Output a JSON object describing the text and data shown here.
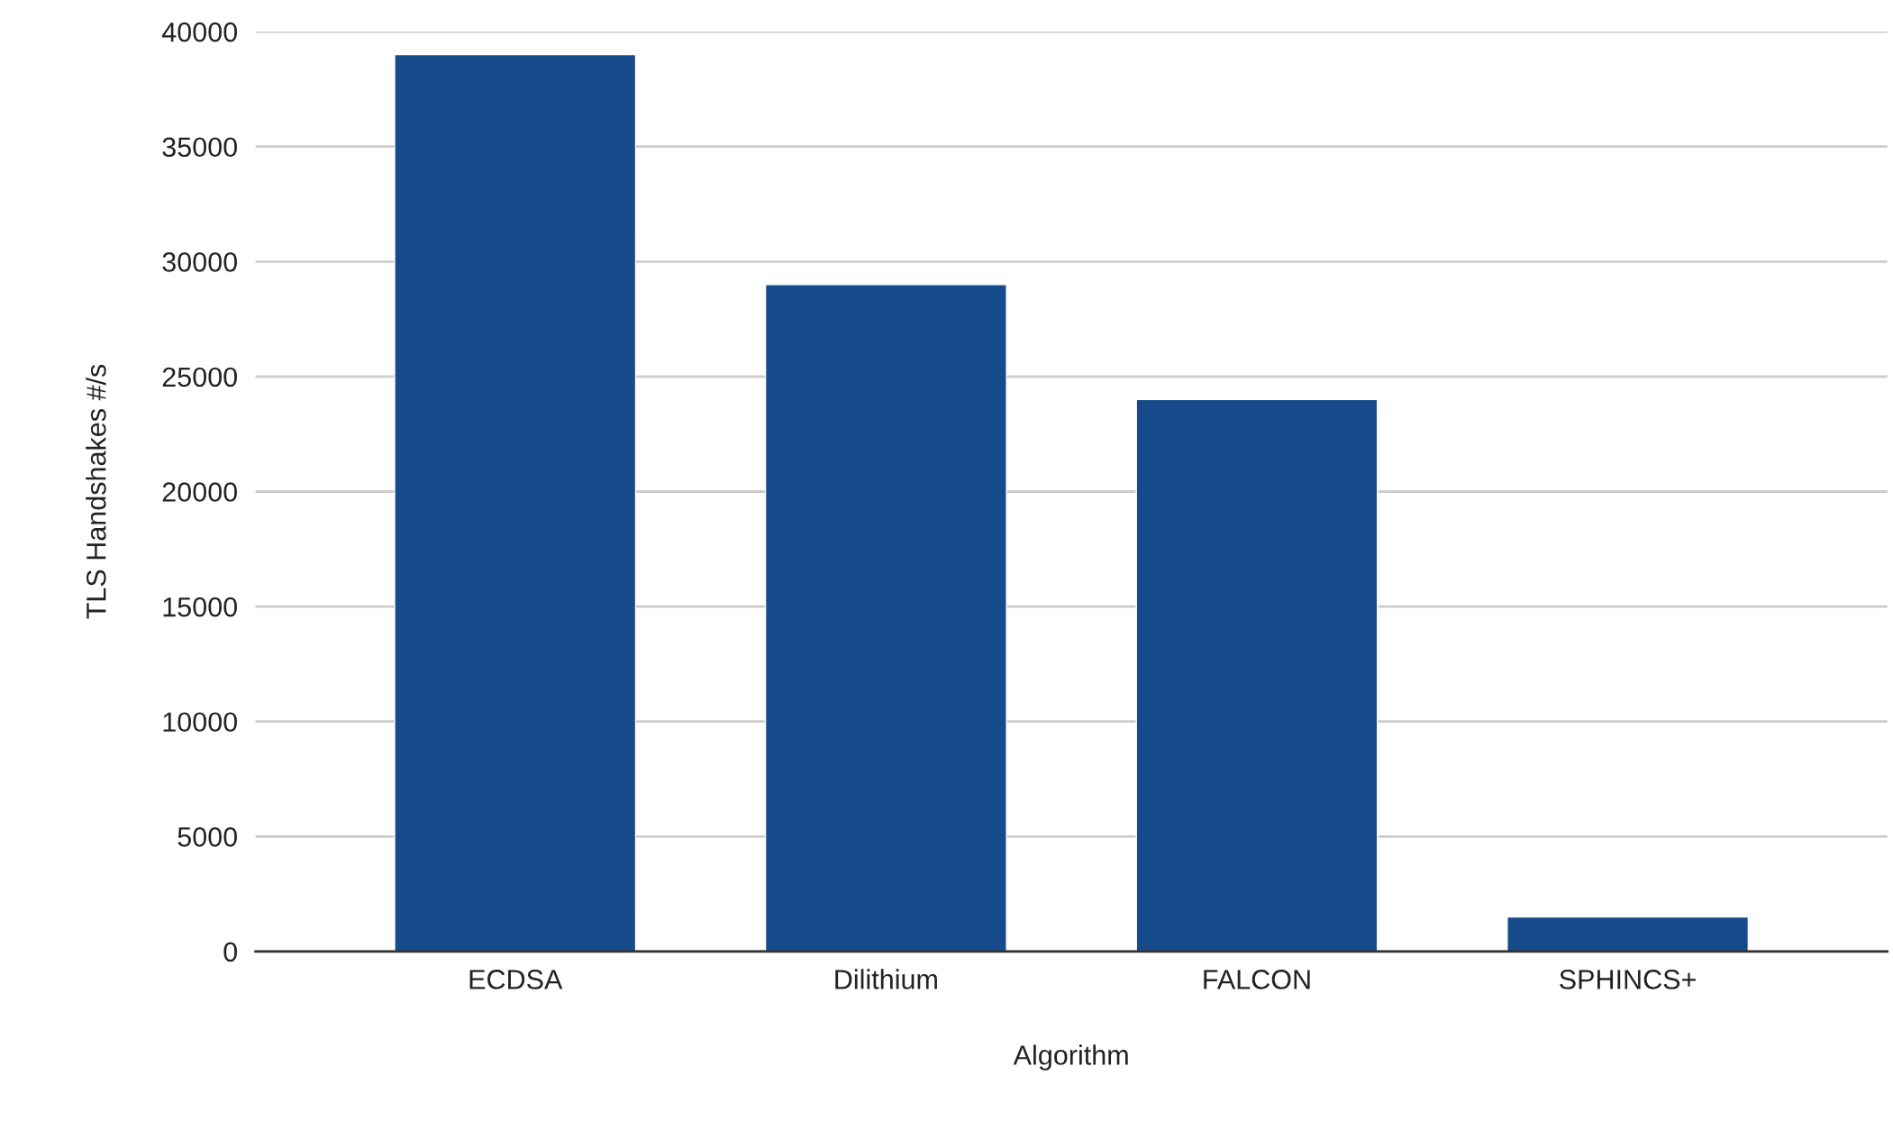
{
  "chart_data": {
    "type": "bar",
    "xlabel": "Algorithm",
    "ylabel": "TLS Handshakes #/s",
    "categories": [
      "ECDSA",
      "Dilithium",
      "FALCON",
      "SPHINCS+"
    ],
    "values": [
      39000,
      29000,
      24000,
      1500
    ],
    "color": "#174a8b",
    "ylim": [
      0,
      40000
    ],
    "yticks": [
      0,
      5000,
      10000,
      15000,
      20000,
      25000,
      30000,
      35000,
      40000
    ],
    "grid": "y",
    "legend": false
  }
}
